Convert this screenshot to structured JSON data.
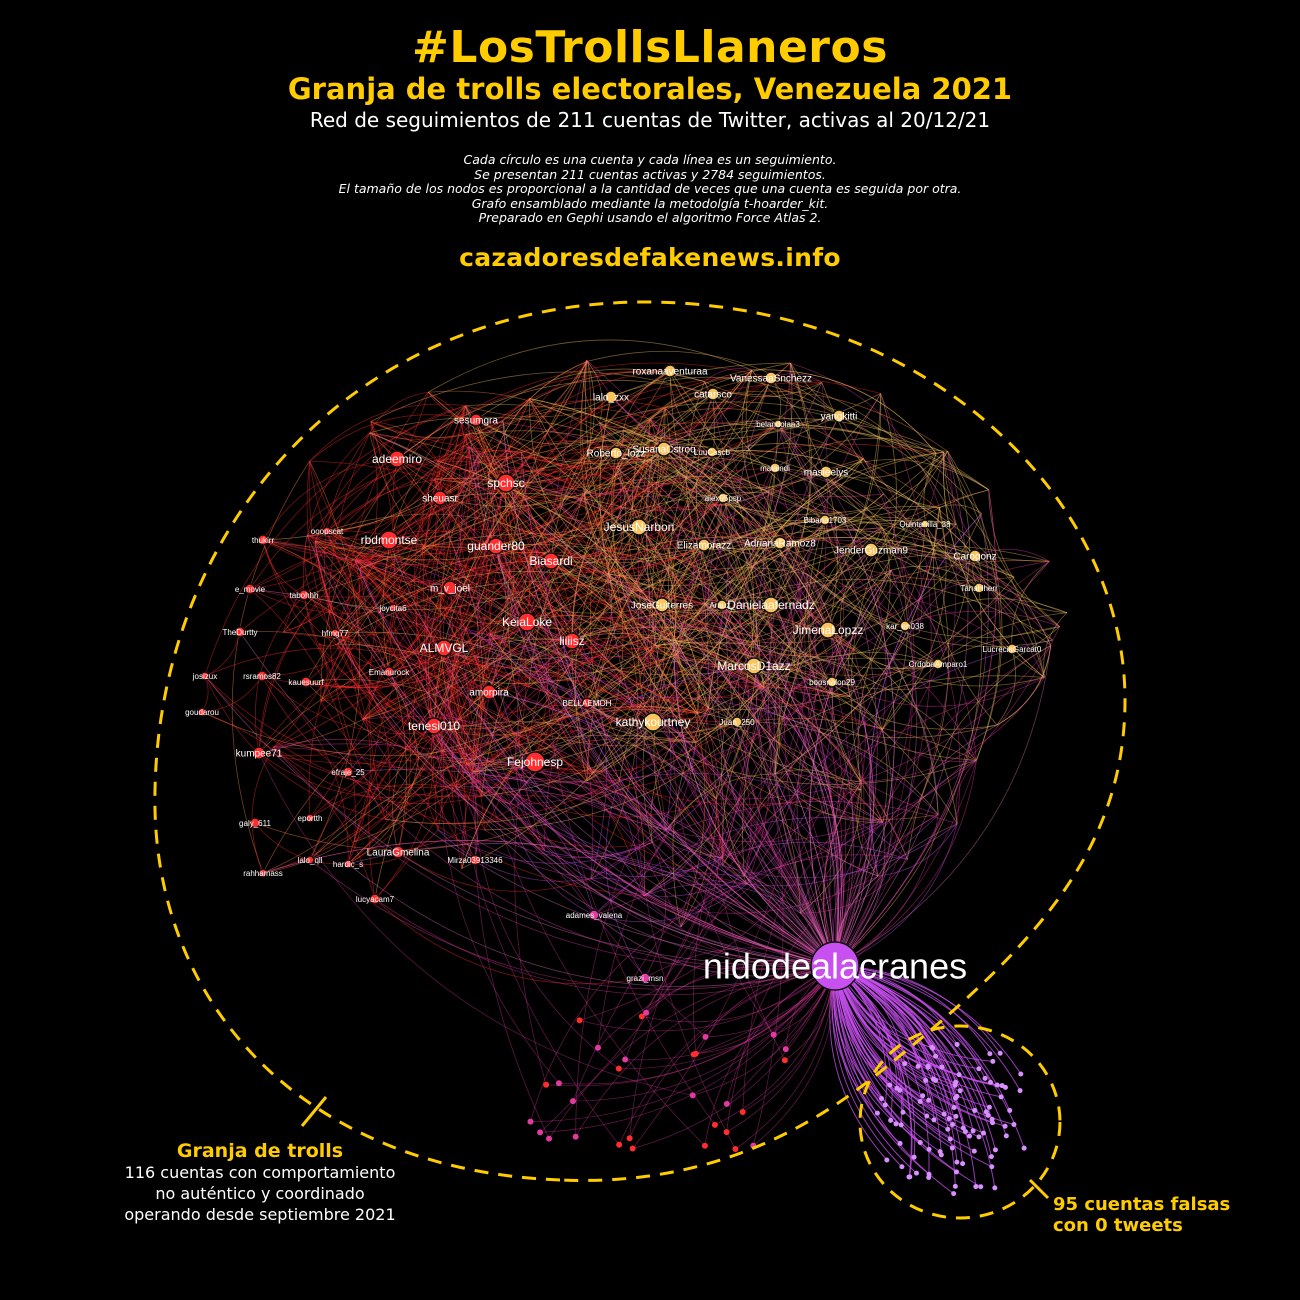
{
  "header": {
    "title": "#LosTrollsLlaneros",
    "subtitle": "Granja de trolls electorales, Venezuela 2021",
    "description": "Red de seguimientos de 211 cuentas de Twitter, activas al 20/12/21",
    "notes": [
      "Cada círculo es una cuenta y cada línea es un seguimiento.",
      "Se presentan 211 cuentas activas y 2784 seguimientos.",
      "El tamaño de los nodos es proporcional a la cantidad de veces que una cuenta es seguida por otra.",
      "Grafo ensamblado mediante la metodolgía t-hoarder_kit.",
      "Preparado en Gephi usando el algoritmo Force Atlas 2."
    ],
    "site": "cazadoresdefakenews.info"
  },
  "annotations": {
    "farm": {
      "title": "Granja de trolls",
      "lines": [
        "116 cuentas con comportamiento",
        "no auténtico y coordinado",
        "operando desde septiembre 2021"
      ]
    },
    "fake": {
      "lines": [
        "95 cuentas falsas",
        "con 0 tweets"
      ]
    }
  },
  "colors": {
    "accent": "#ffcc00",
    "red_cluster": "#ff2d2d",
    "orange_cluster": "#ff8c42",
    "yellow_cluster": "#f7c460",
    "magenta": "#e23aa0",
    "purple": "#c850f0",
    "background": "#000000"
  },
  "graph": {
    "total_accounts": 211,
    "total_follows": 2784,
    "hub": "nidodealacranes",
    "nodes": [
      {
        "label": "sesumgra",
        "group": "red"
      },
      {
        "label": "adeemiro",
        "group": "red"
      },
      {
        "label": "spchsc",
        "group": "red"
      },
      {
        "label": "sheuasr",
        "group": "red"
      },
      {
        "label": "thukirr",
        "group": "red"
      },
      {
        "label": "ooopscat",
        "group": "red"
      },
      {
        "label": "rbdmontse",
        "group": "red"
      },
      {
        "label": "guander80",
        "group": "red"
      },
      {
        "label": "Biasardi",
        "group": "red"
      },
      {
        "label": "e_movie",
        "group": "red"
      },
      {
        "label": "tabohhh",
        "group": "red"
      },
      {
        "label": "m_v_joel",
        "group": "red"
      },
      {
        "label": "joycita6",
        "group": "red"
      },
      {
        "label": "KeiaLoke",
        "group": "red"
      },
      {
        "label": "TheDurtty",
        "group": "red"
      },
      {
        "label": "hfmg77",
        "group": "red"
      },
      {
        "label": "liiiisz",
        "group": "red"
      },
      {
        "label": "ALMVGL",
        "group": "red"
      },
      {
        "label": "josizux",
        "group": "red"
      },
      {
        "label": "rsramos82",
        "group": "red"
      },
      {
        "label": "kauesuurf",
        "group": "red"
      },
      {
        "label": "Emanurock",
        "group": "red"
      },
      {
        "label": "amorpira",
        "group": "red"
      },
      {
        "label": "BELLAEMOH",
        "group": "red"
      },
      {
        "label": "goudarou",
        "group": "red"
      },
      {
        "label": "tenesi010",
        "group": "red"
      },
      {
        "label": "kumpee71",
        "group": "red"
      },
      {
        "label": "Fejohnesp",
        "group": "red"
      },
      {
        "label": "efraje_25",
        "group": "red"
      },
      {
        "label": "galy_611",
        "group": "red"
      },
      {
        "label": "eportth",
        "group": "red"
      },
      {
        "label": "lalo_qll",
        "group": "red"
      },
      {
        "label": "hardic_s",
        "group": "red"
      },
      {
        "label": "LauraGmelina",
        "group": "red"
      },
      {
        "label": "Mirza03913346",
        "group": "red"
      },
      {
        "label": "rahhamass",
        "group": "red"
      },
      {
        "label": "lucyacam7",
        "group": "red"
      },
      {
        "label": "roxanaaventuraa",
        "group": "yellow"
      },
      {
        "label": "VanessaaSnchezz",
        "group": "yellow"
      },
      {
        "label": "lalo_zxx",
        "group": "yellow"
      },
      {
        "label": "catarsco",
        "group": "yellow"
      },
      {
        "label": "yangkitti",
        "group": "yellow"
      },
      {
        "label": "belandolaa3",
        "group": "yellow"
      },
      {
        "label": "Roberto_lozz",
        "group": "yellow"
      },
      {
        "label": "SusanaCstroq",
        "group": "yellow"
      },
      {
        "label": "LuuCascb",
        "group": "yellow"
      },
      {
        "label": "malaindi",
        "group": "yellow"
      },
      {
        "label": "masieelys",
        "group": "yellow"
      },
      {
        "label": "alex95psp",
        "group": "yellow"
      },
      {
        "label": "JesusNarbon",
        "group": "yellow"
      },
      {
        "label": "Bibana1703",
        "group": "yellow"
      },
      {
        "label": "Elizamorazz",
        "group": "yellow"
      },
      {
        "label": "AdrianaRamoz8",
        "group": "yellow"
      },
      {
        "label": "JenderGuzman9",
        "group": "yellow"
      },
      {
        "label": "Quintanilla_38",
        "group": "yellow"
      },
      {
        "label": "Carogonz",
        "group": "yellow"
      },
      {
        "label": "TanaHherr",
        "group": "yellow"
      },
      {
        "label": "JoseGuiterres",
        "group": "yellow"
      },
      {
        "label": "Arauz_",
        "group": "yellow"
      },
      {
        "label": "Danielaafernadz",
        "group": "yellow"
      },
      {
        "label": "JimenaLopzz",
        "group": "yellow"
      },
      {
        "label": "kar_en038",
        "group": "yellow"
      },
      {
        "label": "LucreciaGarcat0",
        "group": "yellow"
      },
      {
        "label": "CrdobaAmparo1",
        "group": "yellow"
      },
      {
        "label": "MarcosD1azz",
        "group": "yellow"
      },
      {
        "label": "boosnalon29",
        "group": "yellow"
      },
      {
        "label": "kathykourtney",
        "group": "yellow"
      },
      {
        "label": "Juan_250",
        "group": "yellow"
      },
      {
        "label": "adames_valena",
        "group": "magenta"
      },
      {
        "label": "grazi_msn",
        "group": "magenta"
      },
      {
        "label": "nidodealacranes",
        "group": "purple"
      }
    ]
  }
}
